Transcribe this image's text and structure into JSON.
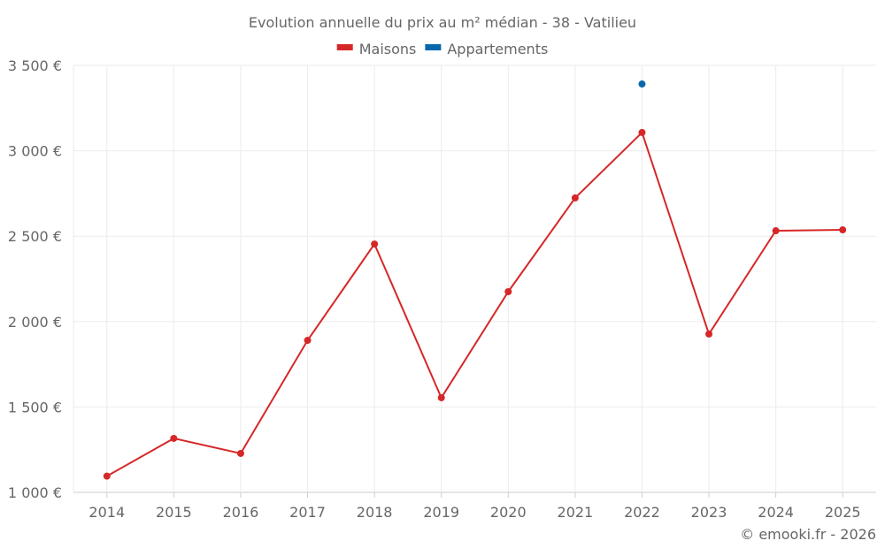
{
  "chart_data": {
    "type": "line",
    "title": "Evolution annuelle du prix au m² médian - 38 - Vatilieu",
    "categories": [
      "2014",
      "2015",
      "2016",
      "2017",
      "2018",
      "2019",
      "2020",
      "2021",
      "2022",
      "2023",
      "2024",
      "2025"
    ],
    "series": [
      {
        "name": "Maisons",
        "color": "#d62728",
        "values": [
          1095,
          1316,
          1228,
          1890,
          2454,
          1554,
          2175,
          2724,
          3107,
          1927,
          2532,
          2537
        ]
      },
      {
        "name": "Appartements",
        "color": "#0868ac",
        "values": [
          null,
          null,
          null,
          null,
          null,
          null,
          null,
          null,
          3391,
          null,
          null,
          null
        ]
      }
    ],
    "ylim": [
      1000,
      3500
    ],
    "yticks": [
      1000,
      1500,
      2000,
      2500,
      3000,
      3500
    ],
    "ytick_labels": [
      "1 000 €",
      "1 500 €",
      "2 000 €",
      "2 500 €",
      "3 000 €",
      "3 500 €"
    ],
    "xlabel": "",
    "ylabel": "",
    "grid": true,
    "legend": "top-center",
    "credit": "© emooki.fr - 2026"
  }
}
